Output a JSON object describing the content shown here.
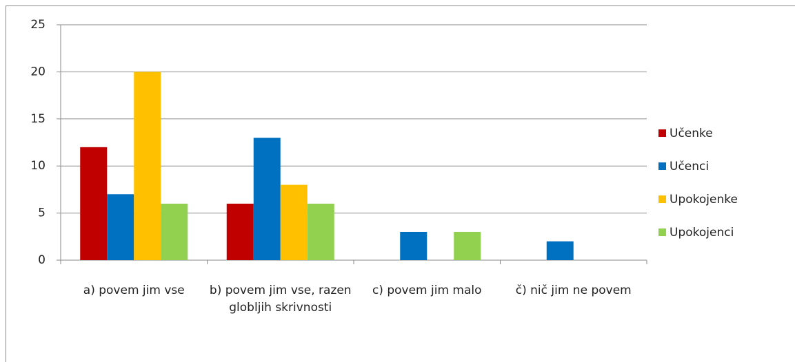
{
  "chart_data": {
    "type": "bar",
    "categories": [
      "a) povem jim vse",
      "b) povem jim vse, razen globljih skrivnosti",
      "c) povem jim malo",
      "č) nič jim ne povem"
    ],
    "series": [
      {
        "name": "Učenke",
        "color": "#c00000",
        "values": [
          12,
          6,
          0,
          0
        ]
      },
      {
        "name": "Učenci",
        "color": "#0070c0",
        "values": [
          7,
          13,
          3,
          2
        ]
      },
      {
        "name": "Upokojenke",
        "color": "#ffc000",
        "values": [
          20,
          8,
          0,
          0
        ]
      },
      {
        "name": "Upokojenci",
        "color": "#92d050",
        "values": [
          6,
          6,
          3,
          0
        ]
      }
    ],
    "ylim": [
      0,
      25
    ],
    "yticks": [
      0,
      5,
      10,
      15,
      20,
      25
    ],
    "grid": true,
    "legend": "right"
  }
}
